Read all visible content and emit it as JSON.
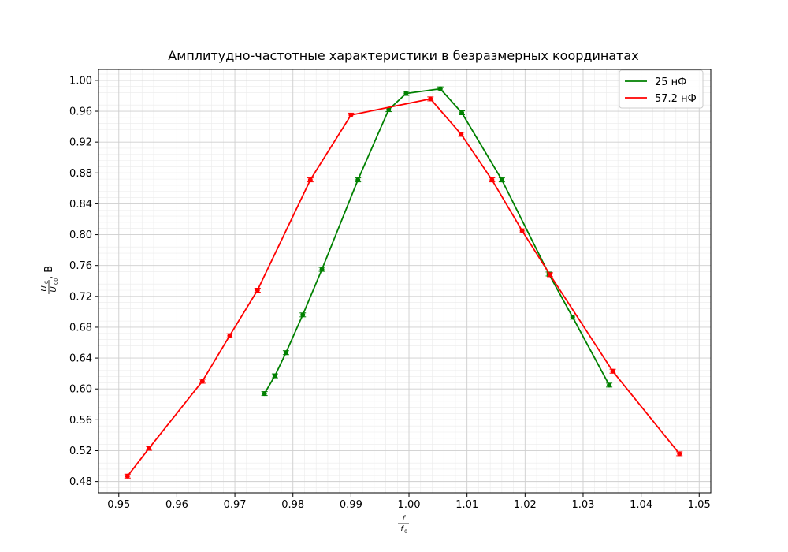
{
  "chart_data": {
    "type": "line",
    "title": "Амплитудно-частотные характеристики в безразмерных координатах",
    "xlabel_num": "f",
    "xlabel_den": "f",
    "xlabel_den_sub": "0",
    "ylabel_num": "U",
    "ylabel_num_sub": "C",
    "ylabel_den": "U",
    "ylabel_den_sub": "C0",
    "ylabel_unit": ", В",
    "xlim": [
      0.9465,
      1.052
    ],
    "ylim": [
      0.4653,
      1.0142
    ],
    "xticks": [
      0.95,
      0.96,
      0.97,
      0.98,
      0.99,
      1.0,
      1.01,
      1.02,
      1.03,
      1.04,
      1.05
    ],
    "xtick_labels": [
      "0.95",
      "0.96",
      "0.97",
      "0.98",
      "0.99",
      "1.00",
      "1.01",
      "1.02",
      "1.03",
      "1.04",
      "1.05"
    ],
    "yticks": [
      0.48,
      0.52,
      0.56,
      0.6,
      0.64,
      0.68,
      0.72,
      0.76,
      0.8,
      0.84,
      0.88,
      0.92,
      0.96,
      1.0
    ],
    "ytick_labels": [
      "0.48",
      "0.52",
      "0.56",
      "0.60",
      "0.64",
      "0.68",
      "0.72",
      "0.76",
      "0.80",
      "0.84",
      "0.88",
      "0.92",
      "0.96",
      "1.00"
    ],
    "grid": true,
    "minor_grid": true,
    "legend_position": "top-right",
    "series": [
      {
        "name": "25 нФ",
        "color": "#008000",
        "points": [
          [
            0.9751,
            0.594
          ],
          [
            0.9769,
            0.617
          ],
          [
            0.9788,
            0.647
          ],
          [
            0.9817,
            0.696
          ],
          [
            0.985,
            0.755
          ],
          [
            0.9912,
            0.871
          ],
          [
            0.9965,
            0.962
          ],
          [
            0.9995,
            0.983
          ],
          [
            1.0054,
            0.989
          ],
          [
            1.0091,
            0.958
          ],
          [
            1.016,
            0.871
          ],
          [
            1.0241,
            0.749
          ],
          [
            1.0282,
            0.693
          ],
          [
            1.0345,
            0.605
          ]
        ]
      },
      {
        "name": "57.2 нФ",
        "color": "#ff0000",
        "points": [
          [
            0.9515,
            0.487
          ],
          [
            0.9552,
            0.523
          ],
          [
            0.9644,
            0.61
          ],
          [
            0.9691,
            0.669
          ],
          [
            0.9739,
            0.728
          ],
          [
            0.983,
            0.871
          ],
          [
            0.99,
            0.955
          ],
          [
            1.0037,
            0.976
          ],
          [
            1.009,
            0.93
          ],
          [
            1.0143,
            0.871
          ],
          [
            1.0195,
            0.805
          ],
          [
            1.0243,
            0.748
          ],
          [
            1.0351,
            0.623
          ],
          [
            1.0466,
            0.516
          ]
        ]
      }
    ]
  }
}
